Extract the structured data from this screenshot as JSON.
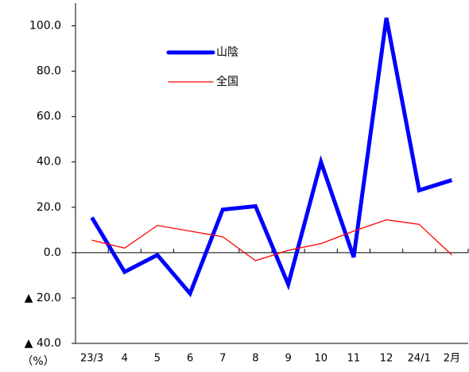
{
  "chart_data": {
    "type": "line",
    "unit": "（%）",
    "categories": [
      "23/3",
      "4",
      "5",
      "6",
      "7",
      "8",
      "9",
      "10",
      "11",
      "12",
      "24/1",
      "2月"
    ],
    "series": [
      {
        "name": "山陰",
        "color": "#0000ff",
        "values": [
          15.5,
          -8.5,
          -1.0,
          -18,
          19,
          20.5,
          -14,
          40,
          -2,
          103.5,
          27.5,
          32
        ]
      },
      {
        "name": "全国",
        "color": "#ff0000",
        "values": [
          5.5,
          2,
          12,
          9.5,
          7,
          -3.5,
          1,
          4,
          9.5,
          14.5,
          12.5,
          -1
        ]
      }
    ],
    "ylim": [
      -40,
      110
    ],
    "yticks": [
      {
        "value": 100,
        "label": "100.0"
      },
      {
        "value": 80,
        "label": "80.0"
      },
      {
        "value": 60,
        "label": "60.0"
      },
      {
        "value": 40,
        "label": "40.0"
      },
      {
        "value": 20,
        "label": "20.0"
      },
      {
        "value": 0,
        "label": "0.0"
      },
      {
        "value": -20,
        "label": "▲ 20.0"
      },
      {
        "value": -40,
        "label": "▲ 40.0"
      }
    ]
  }
}
